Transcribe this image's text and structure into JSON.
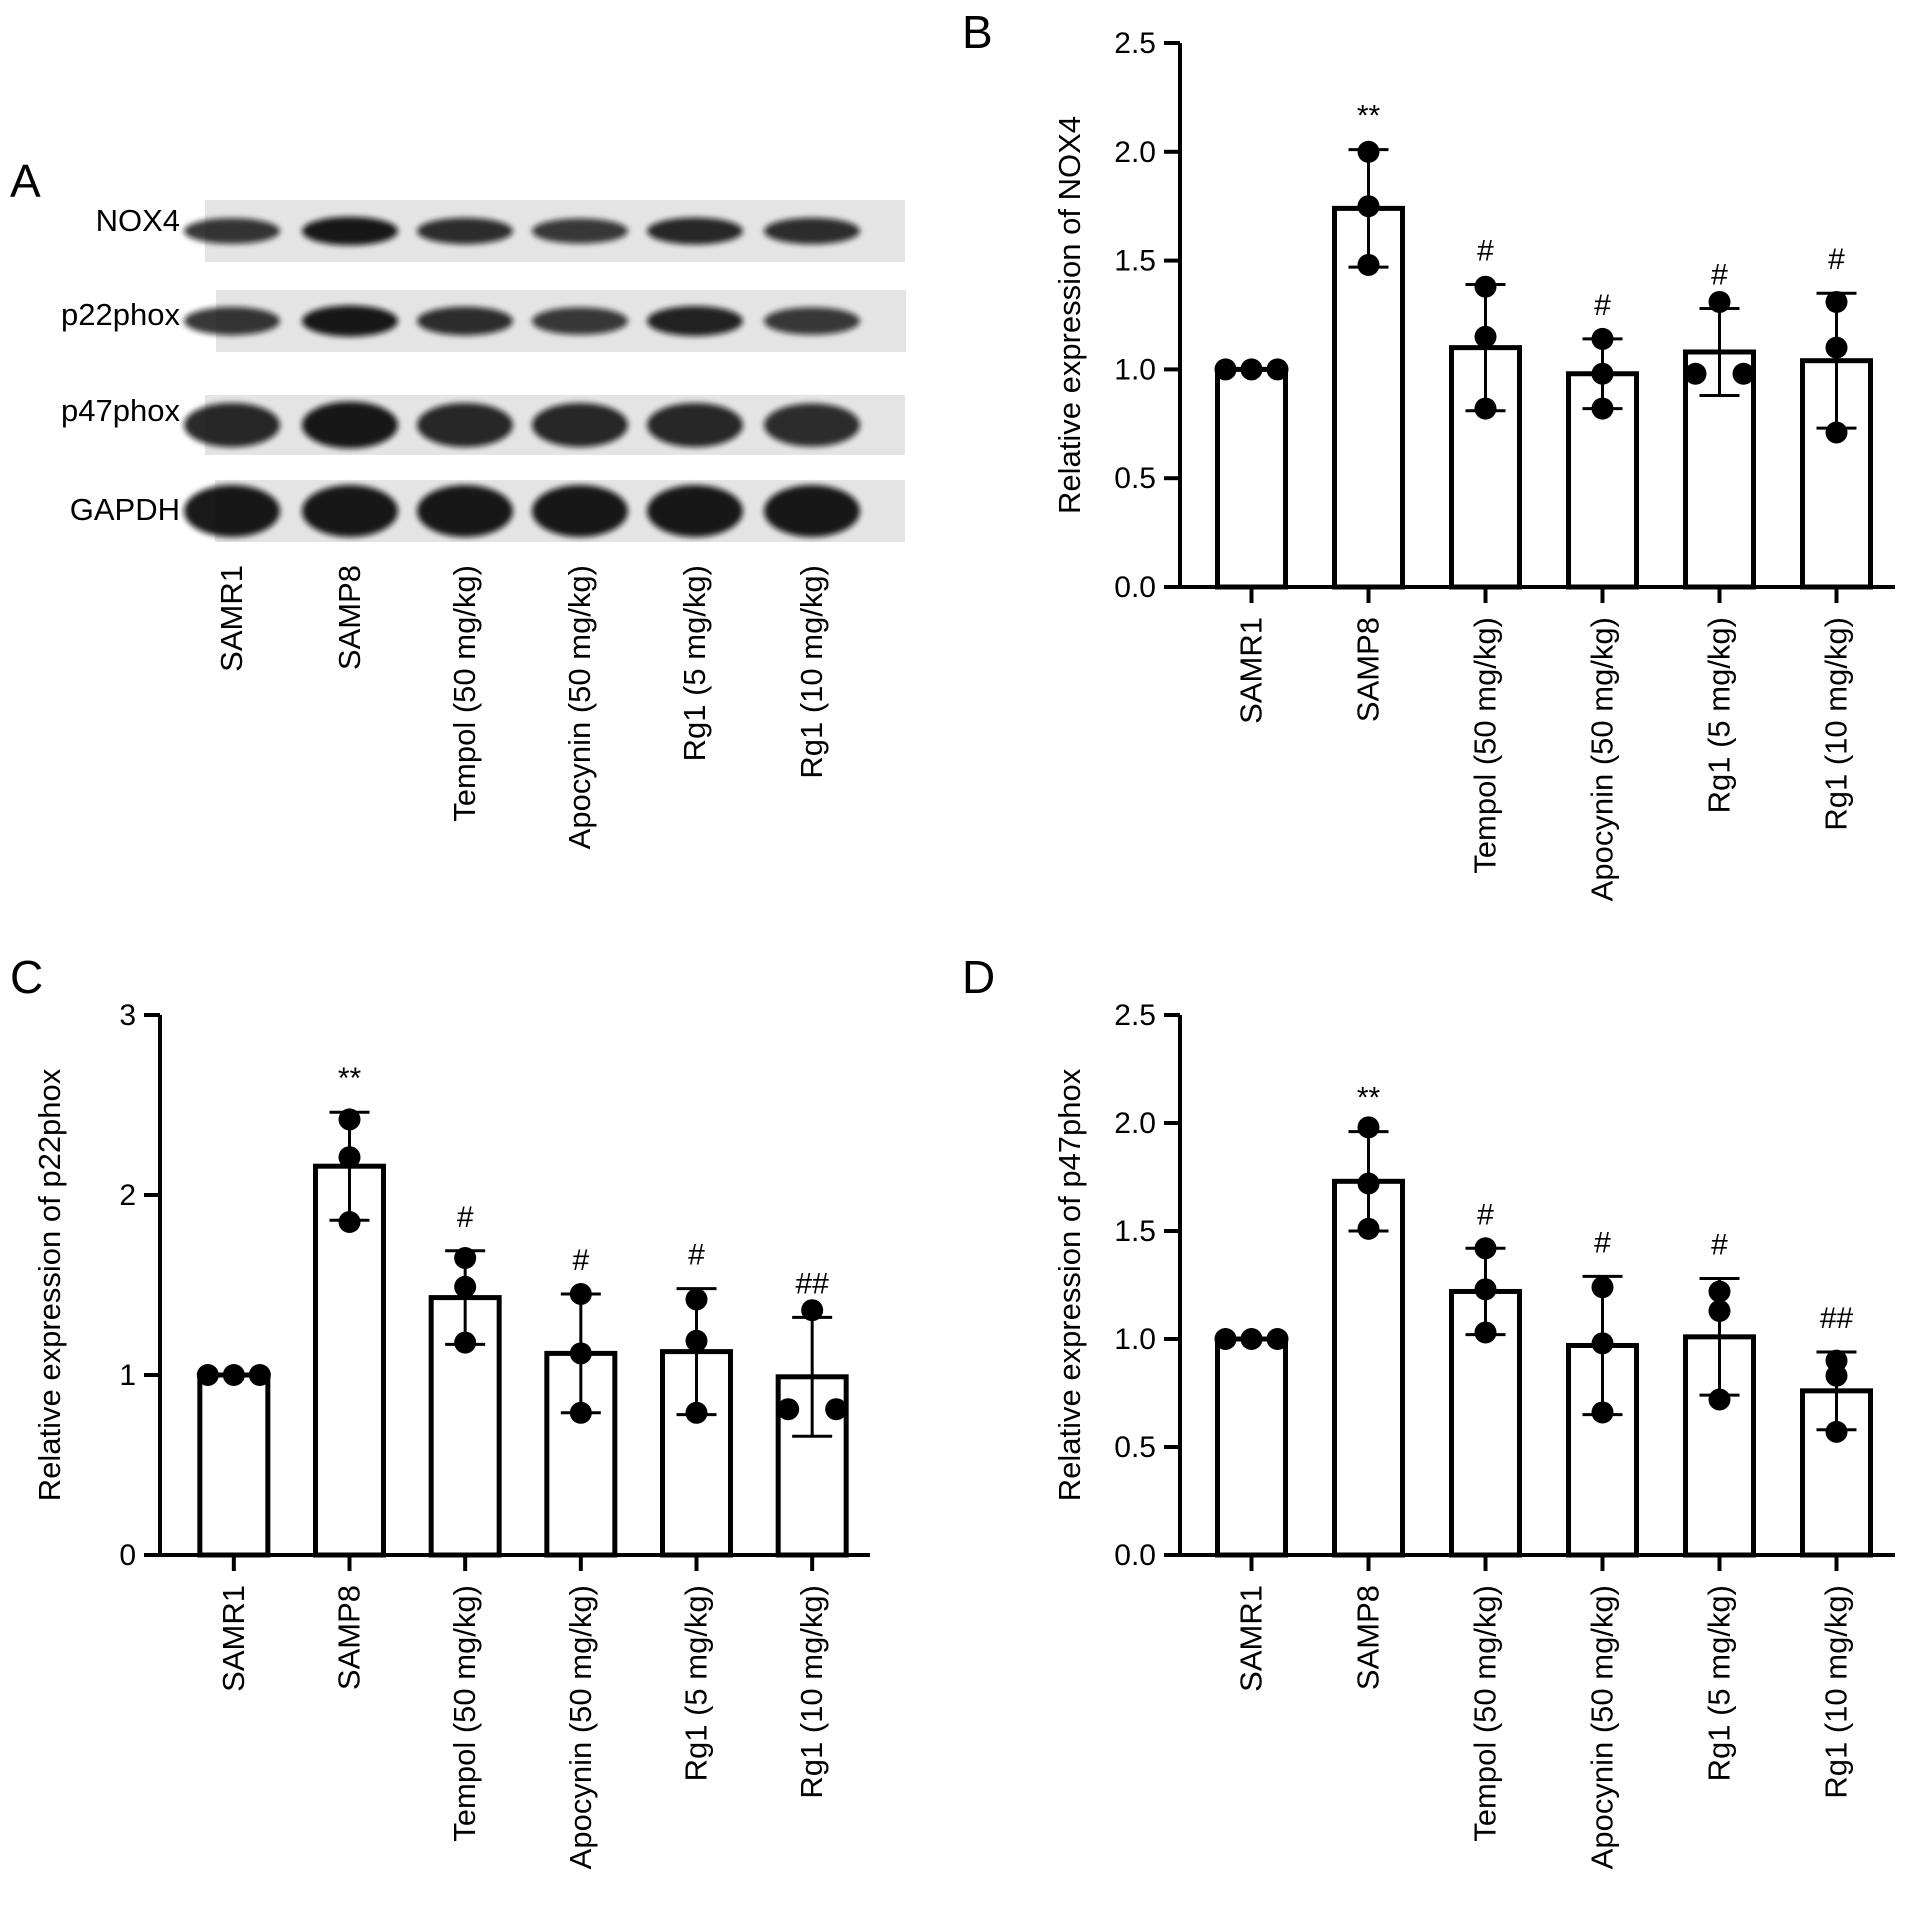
{
  "panels": {
    "A": "A",
    "B": "B",
    "C": "C",
    "D": "D"
  },
  "blot": {
    "rows": [
      "NOX4",
      "p22phox",
      "p47phox",
      "GAPDH"
    ],
    "lanes": [
      "SAMR1",
      "SAMP8",
      "Tempol (50 mg/kg)",
      "Apocynin (50 mg/kg)",
      "Rg1 (5 mg/kg)",
      "Rg1 (10 mg/kg)"
    ]
  },
  "chart_data": [
    {
      "panel": "B",
      "type": "bar",
      "ylabel": "Relative expression of NOX4",
      "ylim": [
        0,
        2.5
      ],
      "yticks": [
        "0.0",
        "0.5",
        "1.0",
        "1.5",
        "2.0",
        "2.5"
      ],
      "ytick_values": [
        0,
        0.5,
        1.0,
        1.5,
        2.0,
        2.5
      ],
      "categories": [
        "SAMR1",
        "SAMP8",
        "Tempol (50 mg/kg)",
        "Apocynin (50 mg/kg)",
        "Rg1 (5 mg/kg)",
        "Rg1 (10 mg/kg)"
      ],
      "values": [
        1.0,
        1.74,
        1.1,
        0.98,
        1.08,
        1.04
      ],
      "error": [
        0.0,
        0.27,
        0.29,
        0.16,
        0.2,
        0.31
      ],
      "points": [
        [
          1.0,
          1.0,
          1.0
        ],
        [
          2.0,
          1.75,
          1.48
        ],
        [
          1.38,
          1.15,
          0.82
        ],
        [
          1.14,
          0.98,
          0.82
        ],
        [
          1.31,
          0.98,
          0.98
        ],
        [
          1.31,
          1.1,
          0.71
        ]
      ],
      "significance": [
        "",
        "**",
        "#",
        "#",
        "#",
        "#"
      ]
    },
    {
      "panel": "C",
      "type": "bar",
      "ylabel": "Relative expression of p22phox",
      "ylim": [
        0,
        3
      ],
      "yticks": [
        "0",
        "1",
        "2",
        "3"
      ],
      "ytick_values": [
        0,
        1,
        2,
        3
      ],
      "categories": [
        "SAMR1",
        "SAMP8",
        "Tempol (50 mg/kg)",
        "Apocynin (50 mg/kg)",
        "Rg1 (5 mg/kg)",
        "Rg1 (10 mg/kg)"
      ],
      "values": [
        1.0,
        2.16,
        1.43,
        1.12,
        1.13,
        0.99
      ],
      "error": [
        0.0,
        0.3,
        0.26,
        0.33,
        0.35,
        0.33
      ],
      "points": [
        [
          1.0,
          1.0,
          1.0
        ],
        [
          2.42,
          2.21,
          1.85
        ],
        [
          1.65,
          1.49,
          1.18
        ],
        [
          1.45,
          1.12,
          0.79
        ],
        [
          1.42,
          1.19,
          0.79
        ],
        [
          1.36,
          0.81,
          0.81
        ]
      ],
      "significance": [
        "",
        "**",
        "#",
        "#",
        "#",
        "##"
      ]
    },
    {
      "panel": "D",
      "type": "bar",
      "ylabel": "Relative expression of p47phox",
      "ylim": [
        0,
        2.5
      ],
      "yticks": [
        "0.0",
        "0.5",
        "1.0",
        "1.5",
        "2.0",
        "2.5"
      ],
      "ytick_values": [
        0,
        0.5,
        1.0,
        1.5,
        2.0,
        2.5
      ],
      "categories": [
        "SAMR1",
        "SAMP8",
        "Tempol (50 mg/kg)",
        "Apocynin (50 mg/kg)",
        "Rg1 (5 mg/kg)",
        "Rg1 (10 mg/kg)"
      ],
      "values": [
        1.0,
        1.73,
        1.22,
        0.97,
        1.01,
        0.76
      ],
      "error": [
        0.0,
        0.23,
        0.2,
        0.32,
        0.27,
        0.18
      ],
      "points": [
        [
          1.0,
          1.0,
          1.0
        ],
        [
          1.98,
          1.72,
          1.51
        ],
        [
          1.42,
          1.23,
          1.03
        ],
        [
          1.24,
          0.98,
          0.66
        ],
        [
          1.22,
          1.13,
          0.72
        ],
        [
          0.9,
          0.83,
          0.57
        ]
      ],
      "significance": [
        "",
        "**",
        "#",
        "#",
        "#",
        "##"
      ]
    }
  ]
}
